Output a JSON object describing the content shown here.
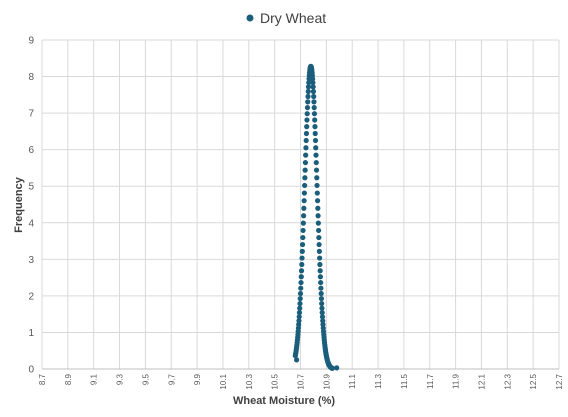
{
  "chart_data": {
    "type": "scatter",
    "title": "",
    "xlabel": "Wheat Moisture (%)",
    "ylabel": "Frequency",
    "xlim": [
      8.7,
      12.7
    ],
    "ylim": [
      0,
      9
    ],
    "x_ticks": [
      "8.7",
      "8.9",
      "9.1",
      "9.3",
      "9.5",
      "9.7",
      "9.9",
      "10.1",
      "10.3",
      "10.5",
      "10.7",
      "10.9",
      "11.1",
      "11.3",
      "11.5",
      "11.7",
      "11.9",
      "12.1",
      "12.3",
      "12.5",
      "12.7"
    ],
    "y_ticks": [
      "0",
      "1",
      "2",
      "3",
      "4",
      "5",
      "6",
      "7",
      "8",
      "9"
    ],
    "grid": true,
    "legend": "top",
    "colors": {
      "series": "#1b5e7b",
      "grid": "#d9d9d9",
      "axis": "#bfbfbf"
    },
    "series": [
      {
        "name": "Dry Wheat",
        "distribution": {
          "mean": 10.78,
          "std": 0.048,
          "peak": 8.28,
          "x_min": 10.66,
          "x_max": 11.0,
          "step": 0.002
        },
        "outliers": [
          [
            10.67,
            0.25
          ],
          [
            10.98,
            0.03
          ]
        ]
      }
    ]
  }
}
